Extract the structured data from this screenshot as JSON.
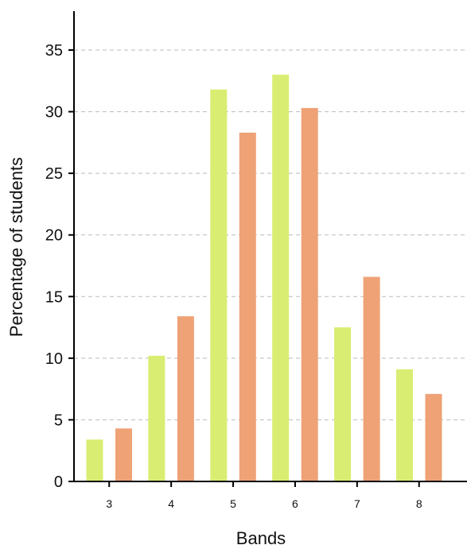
{
  "chart_data": {
    "type": "bar",
    "title": "",
    "xlabel": "Bands",
    "ylabel": "Percentage of students",
    "categories": [
      "3",
      "4",
      "5",
      "6",
      "7",
      "8"
    ],
    "series": [
      {
        "values": [
          3.4,
          10.2,
          31.8,
          33.0,
          12.5,
          9.1
        ],
        "color": "#d9ed72"
      },
      {
        "values": [
          4.3,
          13.4,
          28.3,
          30.3,
          16.6,
          7.1
        ],
        "color": "#eea276"
      }
    ],
    "ylim": [
      0,
      38
    ],
    "yticks": [
      0,
      5,
      10,
      15,
      20,
      25,
      30,
      35
    ],
    "grid": true,
    "legend": "none"
  }
}
